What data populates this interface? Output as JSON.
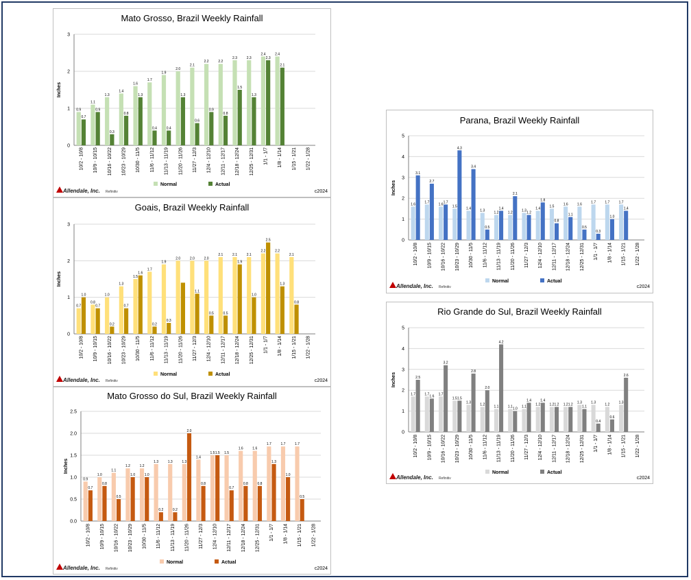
{
  "brand": {
    "logo_text": "Allendale, Inc.",
    "source": "Refinitiv",
    "copyright": "c2024",
    "logo_color": "#c00000"
  },
  "chart_data": [
    {
      "id": "mato-grosso",
      "type": "bar",
      "title": "Mato Grosso, Brazil Weekly Rainfall",
      "ylabel": "Inches",
      "ylim": [
        0,
        3
      ],
      "yticks": [
        0,
        1,
        2,
        3
      ],
      "yticks_text": [
        "0",
        "1",
        "2",
        "3"
      ],
      "categories": [
        "10/2 - 10/8",
        "10/9 - 10/15",
        "10/16 - 10/22",
        "10/23 - 10/29",
        "10/30 - 11/5",
        "11/6 - 11/12",
        "11/13 - 11/19",
        "11/20 - 11/26",
        "11/27 - 12/3",
        "12/4 - 12/10",
        "12/11 - 12/17",
        "12/18 - 12/24",
        "12/25 - 12/31",
        "1/1 - 1/7",
        "1/8 - 1/14",
        "1/15 - 1/21",
        "1/22 - 1/28"
      ],
      "series": [
        {
          "name": "Normal",
          "color": "#c5e0b4",
          "values": [
            0.9,
            1.1,
            1.3,
            1.4,
            1.6,
            1.7,
            1.9,
            2.0,
            2.1,
            2.2,
            2.2,
            2.3,
            2.3,
            2.4,
            2.4,
            null,
            null
          ],
          "labels": [
            "0.9",
            "1.1",
            "1.3",
            "1.4",
            "1.6",
            "1.7",
            "1.9",
            "2.0",
            "2.1",
            "2.2",
            "2.2",
            "2.3",
            "2.3",
            "2.4",
            "2.4",
            "",
            ""
          ]
        },
        {
          "name": "Actual",
          "color": "#548235",
          "values": [
            0.7,
            0.9,
            0.3,
            0.8,
            1.3,
            0.4,
            0.4,
            1.3,
            0.6,
            0.9,
            0.8,
            1.5,
            1.3,
            2.3,
            2.1,
            null,
            null
          ],
          "labels": [
            "0.7",
            "0.9",
            "0.3",
            "0.8",
            "1.3",
            "0.4",
            "0.4",
            "1.3",
            "0.6",
            "0.9",
            "0.8",
            "1.5",
            "1.3",
            "2.3",
            "2.1",
            "",
            ""
          ]
        }
      ]
    },
    {
      "id": "goais",
      "type": "bar",
      "title": "Goais, Brazil Weekly Rainfall",
      "ylabel": "Inches",
      "ylim": [
        0,
        3
      ],
      "yticks": [
        0,
        1,
        2,
        3
      ],
      "yticks_text": [
        "0",
        "1",
        "2",
        "3"
      ],
      "categories": [
        "10/2 - 10/8",
        "10/9 - 10/15",
        "10/16 - 10/22",
        "10/23 - 10/29",
        "10/30 - 11/5",
        "11/6 - 11/12",
        "11/13 - 11/19",
        "11/20 - 11/26",
        "11/27 - 12/3",
        "12/4 - 12/10",
        "12/11 - 12/17",
        "12/18 - 12/24",
        "12/25 - 12/31",
        "1/1 - 1/7",
        "1/8 - 1/14",
        "1/15 - 1/21",
        "1/22 - 1/28"
      ],
      "series": [
        {
          "name": "Normal",
          "color": "#ffe07a",
          "values": [
            0.7,
            0.8,
            1.0,
            1.3,
            1.5,
            1.7,
            1.9,
            2.0,
            2.0,
            2.0,
            2.1,
            2.1,
            2.1,
            2.2,
            2.2,
            2.1,
            null
          ],
          "labels": [
            "0.7",
            "0.8",
            "1.0",
            "1.3",
            "1.5",
            "1.7",
            "1.9",
            "2.0",
            "2.0",
            "2.0",
            "2.1",
            "2.1",
            "2.1",
            "2.2",
            "2.2",
            "2.1",
            ""
          ]
        },
        {
          "name": "Actual",
          "color": "#bf9000",
          "values": [
            1.0,
            0.7,
            0.2,
            0.7,
            1.6,
            0.2,
            0.3,
            1.4,
            1.1,
            0.5,
            0.5,
            1.9,
            1.0,
            2.5,
            1.3,
            0.8,
            null
          ],
          "labels": [
            "1.0",
            "0.7",
            "0.2",
            "0.7",
            "1.6",
            "0.2",
            "0.3",
            "",
            "1.1",
            "0.5",
            "0.5",
            "1.9",
            "1.0",
            "2.5",
            "1.3",
            "0.8",
            ""
          ]
        }
      ]
    },
    {
      "id": "mato-grosso-do-sul",
      "type": "bar",
      "title": "Mato Grosso do Sul, Brazil Weekly Rainfall",
      "ylabel": "Inches",
      "ylim": [
        0,
        2.5
      ],
      "yticks": [
        0,
        0.5,
        1.0,
        1.5,
        2.0,
        2.5
      ],
      "yticks_text": [
        "0.0",
        "0.5",
        "1.0",
        "1.5",
        "2.0",
        "2.5"
      ],
      "categories": [
        "10/2 - 10/8",
        "10/9 - 10/15",
        "10/16 - 10/22",
        "10/23 - 10/29",
        "10/30 - 11/5",
        "11/6 - 11/12",
        "11/13 - 11/19",
        "11/20 - 11/26",
        "11/27 - 12/3",
        "12/4 - 12/10",
        "12/11 - 12/17",
        "12/18 - 12/24",
        "12/25 - 12/31",
        "1/1 - 1/7",
        "1/8 - 1/14",
        "1/15 - 1/21",
        "1/22 - 1/28"
      ],
      "series": [
        {
          "name": "Normal",
          "color": "#f8cbad",
          "values": [
            0.9,
            1.0,
            1.1,
            1.2,
            1.2,
            1.3,
            1.3,
            1.3,
            1.4,
            1.5,
            1.5,
            1.6,
            1.6,
            1.7,
            1.7,
            1.7,
            null
          ],
          "labels": [
            "0.9",
            "1.0",
            "1.1",
            "1.2",
            "1.2",
            "1.3",
            "1.3",
            "1.3",
            "1.4",
            "1.5",
            "1.5",
            "1.6",
            "1.6",
            "1.7",
            "1.7",
            "1.7",
            ""
          ]
        },
        {
          "name": "Actual",
          "color": "#c55a11",
          "values": [
            0.7,
            0.8,
            0.5,
            1.0,
            1.0,
            0.2,
            0.2,
            2.0,
            0.8,
            1.5,
            0.7,
            0.8,
            0.8,
            1.3,
            1.0,
            0.5,
            null
          ],
          "labels": [
            "0.7",
            "0.8",
            "0.5",
            "1.0",
            "1.0",
            "0.2",
            "0.2",
            "2.0",
            "0.8",
            "1.5",
            "0.7",
            "0.8",
            "0.8",
            "1.3",
            "1.0",
            "0.5",
            ""
          ]
        }
      ]
    },
    {
      "id": "parana",
      "type": "bar",
      "title": "Parana, Brazil Weekly Rainfall",
      "ylabel": "Inches",
      "ylim": [
        0,
        5
      ],
      "yticks": [
        0,
        1,
        2,
        3,
        4,
        5
      ],
      "yticks_text": [
        "0",
        "1",
        "2",
        "3",
        "4",
        "5"
      ],
      "categories": [
        "10/2 - 10/8",
        "10/9 - 10/15",
        "10/16 - 10/22",
        "10/23 - 10/29",
        "10/30 - 11/5",
        "11/6 - 11/12",
        "11/13 - 11/19",
        "11/20 - 11/26",
        "11/27 - 12/3",
        "12/4 - 12/10",
        "12/11 - 12/17",
        "12/18 - 12/24",
        "12/25 - 12/31",
        "1/1 - 1/7",
        "1/8 - 1/14",
        "1/15 - 1/21",
        "1/22 - 1/28"
      ],
      "series": [
        {
          "name": "Normal",
          "color": "#bdd7ee",
          "values": [
            1.6,
            1.7,
            1.6,
            1.5,
            1.4,
            1.3,
            1.2,
            1.2,
            1.3,
            1.4,
            1.5,
            1.6,
            1.6,
            1.7,
            1.7,
            1.7,
            null
          ],
          "labels": [
            "1.6",
            "1.7",
            "1.6",
            "1.5",
            "1.4",
            "1.3",
            "1.2",
            "1.2",
            "1.3",
            "1.4",
            "1.5",
            "1.6",
            "1.6",
            "1.7",
            "1.7",
            "1.7",
            ""
          ]
        },
        {
          "name": "Actual",
          "color": "#4472c4",
          "values": [
            3.1,
            2.7,
            1.7,
            4.3,
            3.4,
            0.5,
            1.4,
            2.1,
            1.2,
            1.8,
            0.8,
            1.1,
            0.5,
            0.3,
            1.0,
            1.4,
            null
          ],
          "labels": [
            "3.1",
            "2.7",
            "1.7",
            "4.3",
            "3.4",
            "0.5",
            "1.4",
            "2.1",
            "1.2",
            "1.8",
            "0.8",
            "1.1",
            "0.5",
            "0.3",
            "1.0",
            "1.4",
            ""
          ]
        }
      ]
    },
    {
      "id": "rio-grande-do-sul",
      "type": "bar",
      "title": "Rio Grande do Sul, Brazil Weekly Rainfall",
      "ylabel": "Inches",
      "ylim": [
        0,
        5
      ],
      "yticks": [
        0,
        1,
        2,
        3,
        4,
        5
      ],
      "yticks_text": [
        "0",
        "1",
        "2",
        "3",
        "4",
        "5"
      ],
      "categories": [
        "10/2 - 10/8",
        "10/9 - 10/15",
        "10/16 - 10/22",
        "10/23 - 10/29",
        "10/30 - 11/5",
        "11/6 - 11/12",
        "11/13 - 11/19",
        "11/20 - 11/26",
        "11/27 - 12/3",
        "12/4 - 12/10",
        "12/11 - 12/17",
        "12/18 - 12/24",
        "12/25 - 12/31",
        "1/1 - 1/7",
        "1/8 - 1/14",
        "1/15 - 1/21",
        "1/22 - 1/28"
      ],
      "series": [
        {
          "name": "Normal",
          "color": "#d9d9d9",
          "values": [
            1.7,
            1.7,
            1.7,
            1.5,
            1.3,
            1.2,
            1.1,
            1.1,
            1.1,
            1.2,
            1.2,
            1.2,
            1.3,
            1.3,
            1.2,
            1.3,
            null
          ],
          "labels": [
            "1.7",
            "1.7",
            "1.7",
            "1.5",
            "1.3",
            "1.2",
            "1.1",
            "1.1",
            "1.1",
            "1.2",
            "1.2",
            "1.2",
            "1.3",
            "1.3",
            "1.2",
            "1.3",
            ""
          ]
        },
        {
          "name": "Actual",
          "color": "#808080",
          "values": [
            2.5,
            1.6,
            3.2,
            1.5,
            2.8,
            2.0,
            4.2,
            1.0,
            1.4,
            1.4,
            1.2,
            1.2,
            1.1,
            0.4,
            0.6,
            2.6,
            null
          ],
          "labels": [
            "2.5",
            "1.6",
            "3.2",
            "1.5",
            "2.8",
            "2.0",
            "4.2",
            "1.0",
            "1.4",
            "1.4",
            "1.2",
            "1.2",
            "1.1",
            "0.4",
            "0.6",
            "2.6",
            ""
          ]
        }
      ]
    }
  ]
}
